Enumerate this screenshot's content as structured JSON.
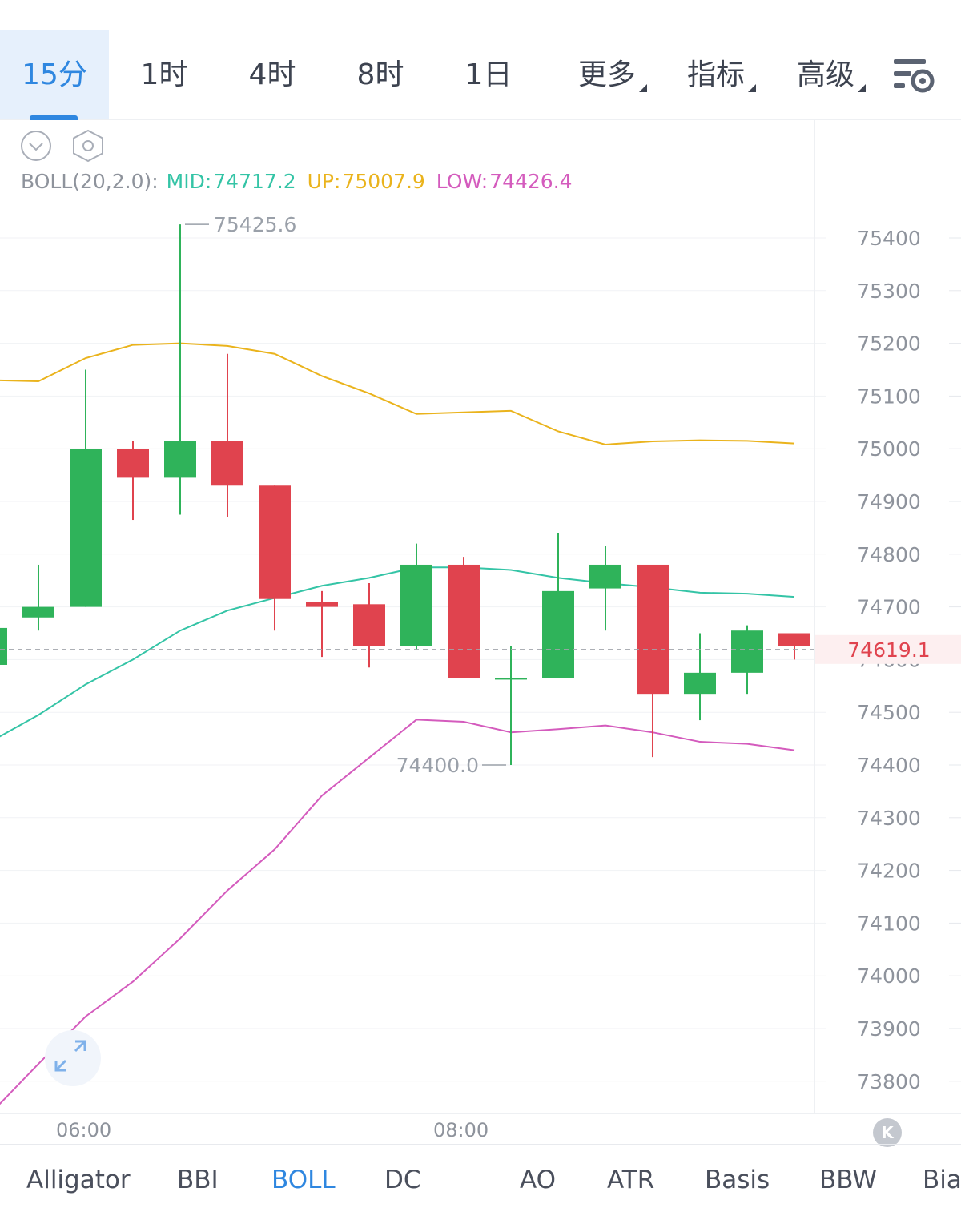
{
  "tabs": [
    {
      "label": "15分",
      "active": true
    },
    {
      "label": "1时",
      "active": false
    },
    {
      "label": "4时",
      "active": false
    },
    {
      "label": "8时",
      "active": false
    },
    {
      "label": "1日",
      "active": false
    },
    {
      "label": "更多",
      "active": false,
      "dropdown": true
    },
    {
      "label": "指标",
      "active": false,
      "dropdown": true
    },
    {
      "label": "高级",
      "active": false,
      "dropdown": true
    }
  ],
  "icons": {
    "settings": "settings-list-gear-icon",
    "collapse": "chevron-down-circle-icon",
    "indicator_settings": "hexagon-gear-icon",
    "expand": "expand-arrows-icon",
    "scroll_to_latest": "k-icon"
  },
  "legend": {
    "name": "BOLL(20,2.0):",
    "mid_label": "MID:",
    "mid_value": "74717.2",
    "up_label": "UP:",
    "up_value": "75007.9",
    "low_label": "LOW:",
    "low_value": "74426.4"
  },
  "colors": {
    "up_candle": "#2fb35a",
    "down_candle": "#e0434e",
    "mid": "#34c4a6",
    "upper": "#eab31c",
    "lower": "#d45bbd",
    "accent": "#2f87e0"
  },
  "chart_data": {
    "type": "candlestick",
    "ylim": [
      73750,
      75480
    ],
    "y_ticks": [
      "75400",
      "75300",
      "75200",
      "75100",
      "75000",
      "74900",
      "74800",
      "74700",
      "74600",
      "74500",
      "74400",
      "74300",
      "74200",
      "74100",
      "74000",
      "73900",
      "73800"
    ],
    "x_ticks": [
      {
        "index": 2,
        "label": "06:00"
      },
      {
        "index": 10,
        "label": "08:00"
      }
    ],
    "last_price": "74619.1",
    "high_marker": {
      "index": 4,
      "label": "75425.6"
    },
    "low_marker": {
      "index": 11,
      "label": "74400.0"
    },
    "candles": [
      {
        "o": 74590,
        "h": 74660,
        "l": 74570,
        "c": 74660
      },
      {
        "o": 74680,
        "h": 74780,
        "l": 74655,
        "c": 74700
      },
      {
        "o": 74700,
        "h": 75150,
        "l": 74700,
        "c": 75000
      },
      {
        "o": 75000,
        "h": 75015,
        "l": 74865,
        "c": 74945
      },
      {
        "o": 74945,
        "h": 75425.6,
        "l": 74875,
        "c": 75015
      },
      {
        "o": 75015,
        "h": 75180,
        "l": 74870,
        "c": 74930
      },
      {
        "o": 74930,
        "h": 74930,
        "l": 74655,
        "c": 74715
      },
      {
        "o": 74710,
        "h": 74730,
        "l": 74605,
        "c": 74700
      },
      {
        "o": 74705,
        "h": 74745,
        "l": 74585,
        "c": 74625
      },
      {
        "o": 74625,
        "h": 74820,
        "l": 74620,
        "c": 74780
      },
      {
        "o": 74780,
        "h": 74795,
        "l": 74565,
        "c": 74565
      },
      {
        "o": 74565,
        "h": 74625,
        "l": 74400.0,
        "c": 74565
      },
      {
        "o": 74565,
        "h": 74840,
        "l": 74565,
        "c": 74730
      },
      {
        "o": 74735,
        "h": 74815,
        "l": 74655,
        "c": 74780
      },
      {
        "o": 74780,
        "h": 74780,
        "l": 74415,
        "c": 74535
      },
      {
        "o": 74535,
        "h": 74650,
        "l": 74485,
        "c": 74575
      },
      {
        "o": 74575,
        "h": 74665,
        "l": 74535,
        "c": 74655
      },
      {
        "o": 74650,
        "h": 74650,
        "l": 74600,
        "c": 74625
      }
    ],
    "boll_mid": [
      74445,
      74495,
      74553,
      74600,
      74655,
      74693,
      74717,
      74740,
      74755,
      74775,
      74775,
      74770,
      74755,
      74745,
      74737,
      74727,
      74725,
      74719
    ],
    "boll_up": [
      75130,
      75128,
      75172,
      75197,
      75200,
      75195,
      75180,
      75138,
      75105,
      75066,
      75069,
      75072,
      75033,
      75008,
      75014,
      75016,
      75015,
      75010
    ],
    "boll_low": [
      73740,
      73833,
      73923,
      73989,
      74071,
      74162,
      74240,
      74342,
      74414,
      74486,
      74482,
      74462,
      74468,
      74475,
      74462,
      74444,
      74440,
      74428
    ],
    "x_step": 59,
    "x_start": -11
  },
  "time_axis": {
    "t1": "06:00",
    "t2": "08:00"
  },
  "indicators_main": [
    "Alligator",
    "BBI",
    "BOLL",
    "DC"
  ],
  "indicators_sub": [
    "AO",
    "ATR",
    "Basis",
    "BBW",
    "Bias"
  ],
  "active_indicator": "BOLL"
}
